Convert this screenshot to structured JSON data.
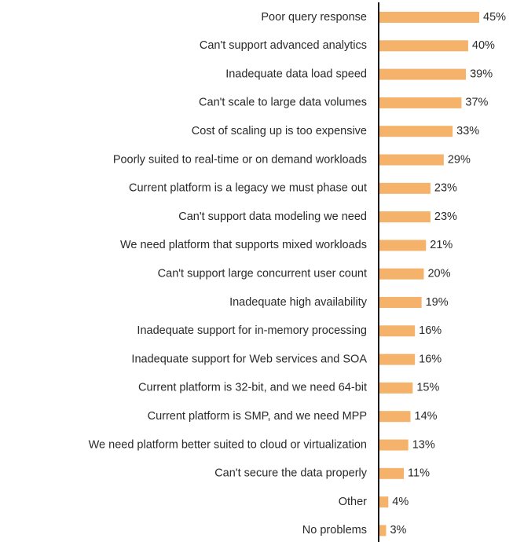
{
  "chart_data": {
    "type": "bar",
    "orientation": "horizontal",
    "categories": [
      "Poor query response",
      "Can't support advanced analytics",
      "Inadequate data load speed",
      "Can't scale to large data volumes",
      "Cost of scaling up is too expensive",
      "Poorly suited to real-time or on demand workloads",
      "Current platform is a legacy we must phase out",
      "Can't support data modeling we need",
      "We need platform that supports mixed workloads",
      "Can't support large concurrent user count",
      "Inadequate high availability",
      "Inadequate support for in-memory processing",
      "Inadequate support for Web services and SOA",
      "Current platform is 32-bit, and we need 64-bit",
      "Current platform is SMP, and we need MPP",
      "We need platform better suited to cloud or virtualization",
      "Can't secure the data properly",
      "Other",
      "No problems"
    ],
    "values": [
      45,
      40,
      39,
      37,
      33,
      29,
      23,
      23,
      21,
      20,
      19,
      16,
      16,
      15,
      14,
      13,
      11,
      4,
      3
    ],
    "value_labels": [
      "45%",
      "40%",
      "39%",
      "37%",
      "33%",
      "29%",
      "23%",
      "23%",
      "21%",
      "20%",
      "19%",
      "16%",
      "16%",
      "15%",
      "14%",
      "13%",
      "11%",
      "4%",
      "3%"
    ],
    "bar_color": "#F4B26B",
    "axis_color": "#1a1a1a",
    "grid": false
  }
}
